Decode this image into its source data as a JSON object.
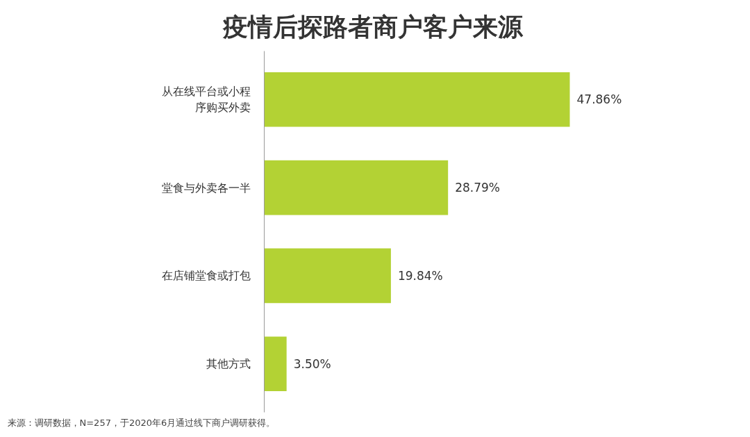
{
  "chart_data": {
    "type": "bar",
    "orientation": "horizontal",
    "title": "疫情后探路者商户客户来源",
    "categories": [
      "从在线平台或小程序购买外卖",
      "堂食与外卖各一半",
      "在店铺堂食或打包",
      "其他方式"
    ],
    "values": [
      47.86,
      28.79,
      19.84,
      3.5
    ],
    "value_labels": [
      "47.86%",
      "28.79%",
      "19.84%",
      "3.50%"
    ],
    "color": "#b3d234",
    "tick_labels": "y",
    "grid": false,
    "annotations": [
      "来源：调研数据，N=257，于2020年6月通过线下商户调研获得。"
    ]
  }
}
